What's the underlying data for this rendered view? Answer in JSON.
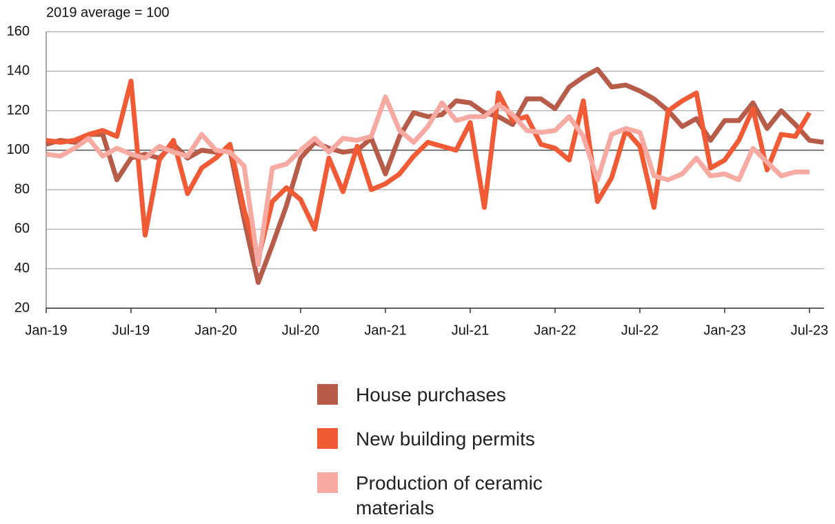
{
  "chart_data": {
    "type": "line",
    "y_axis_label": "2019 average = 100",
    "categories": [
      "Jan-19",
      null,
      null,
      null,
      null,
      null,
      "Jul-19",
      null,
      null,
      null,
      null,
      null,
      "Jan-20",
      null,
      null,
      null,
      null,
      null,
      "Jul-20",
      null,
      null,
      null,
      null,
      null,
      "Jan-21",
      null,
      null,
      null,
      null,
      null,
      "Jul-21",
      null,
      null,
      null,
      null,
      null,
      "Jan-22",
      null,
      null,
      null,
      null,
      null,
      "Jul-22",
      null,
      null,
      null,
      null,
      null,
      "Jan-23",
      null,
      null,
      null,
      null,
      null,
      "Jul-23",
      null
    ],
    "series": [
      {
        "name": "House purchases",
        "color": "#b85c4a",
        "values": [
          103,
          105,
          104,
          108,
          108,
          85,
          96,
          98,
          96,
          103,
          96,
          100,
          99,
          100,
          65,
          33,
          52,
          72,
          96,
          104,
          101,
          99,
          100,
          106,
          88,
          107,
          119,
          117,
          118,
          125,
          124,
          119,
          117,
          113,
          126,
          126,
          121,
          132,
          137,
          141,
          132,
          133,
          130,
          126,
          120,
          112,
          116,
          105,
          115,
          115,
          124,
          111,
          120,
          113,
          105,
          104
        ]
      },
      {
        "name": "New building permits",
        "color": "#f05a35",
        "values": [
          105,
          104,
          105,
          108,
          110,
          107,
          135,
          57,
          95,
          105,
          78,
          91,
          96,
          103,
          70,
          45,
          74,
          81,
          75,
          60,
          96,
          79,
          102,
          80,
          83,
          88,
          97,
          104,
          102,
          100,
          114,
          71,
          129,
          115,
          117,
          103,
          101,
          95,
          125,
          74,
          86,
          110,
          102,
          71,
          120,
          125,
          129,
          91,
          95,
          105,
          121,
          90,
          108,
          107,
          119,
          null
        ]
      },
      {
        "name": "Production of ceramic materials",
        "color": "#f7aaa2",
        "values": [
          98,
          97,
          101,
          106,
          97,
          101,
          98,
          96,
          102,
          99,
          97,
          108,
          100,
          99,
          92,
          42,
          91,
          93,
          100,
          106,
          99,
          106,
          105,
          107,
          127,
          110,
          104,
          112,
          124,
          115,
          117,
          117,
          123,
          118,
          110,
          109,
          110,
          117,
          107,
          85,
          108,
          111,
          109,
          87,
          85,
          88,
          96,
          87,
          88,
          85,
          101,
          94,
          87,
          89,
          89,
          null
        ]
      }
    ],
    "ylim": [
      20,
      160
    ],
    "yticks": [
      20,
      40,
      60,
      80,
      100,
      120,
      140,
      160
    ],
    "grid": true
  }
}
